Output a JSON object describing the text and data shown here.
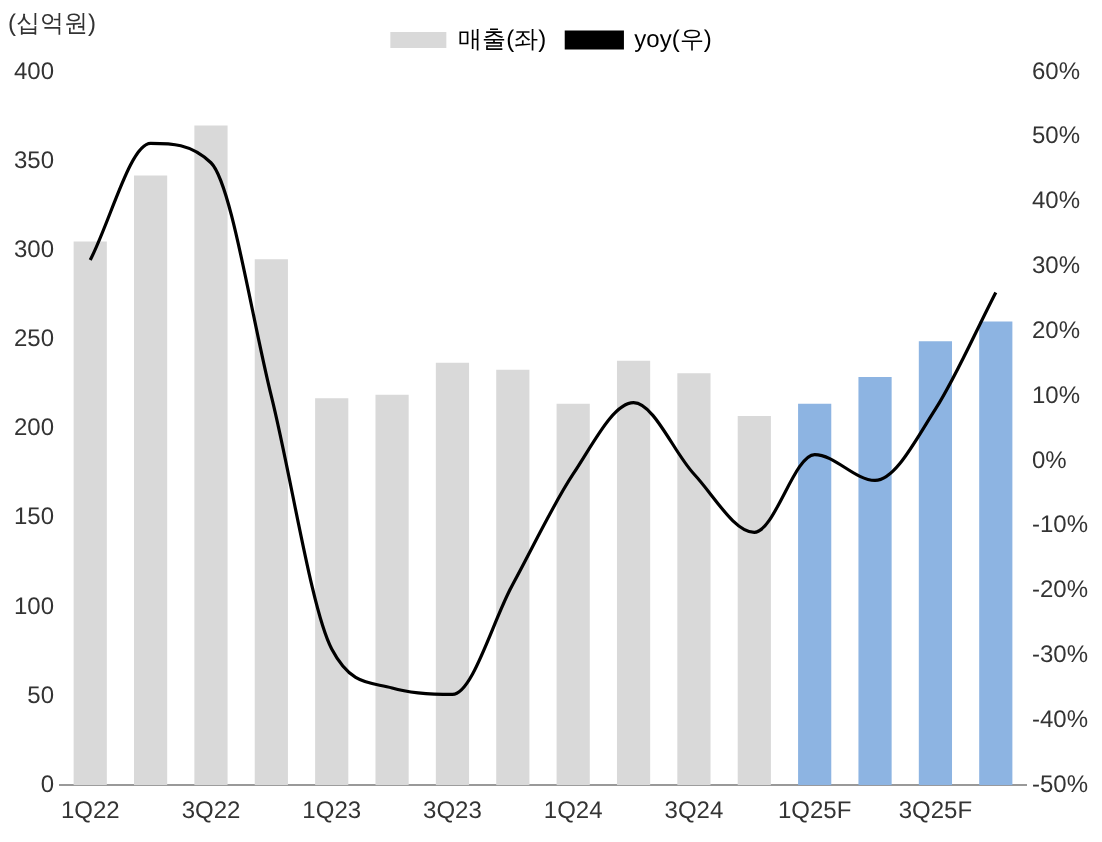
{
  "chart_data": {
    "type": "bar",
    "ylabel": "(십억원)",
    "categories": [
      "1Q22",
      null,
      "3Q22",
      null,
      "1Q23",
      null,
      "3Q23",
      null,
      "1Q24",
      null,
      "3Q24",
      null,
      "1Q25F",
      null,
      "3Q25F",
      null
    ],
    "series": [
      {
        "name": "매출(좌)",
        "color": "#d9d9d9",
        "colors": [
          "#d9d9d9",
          "#d9d9d9",
          "#d9d9d9",
          "#d9d9d9",
          "#d9d9d9",
          "#d9d9d9",
          "#d9d9d9",
          "#d9d9d9",
          "#d9d9d9",
          "#d9d9d9",
          "#d9d9d9",
          "#d9d9d9",
          "#8db4e2",
          "#8db4e2",
          "#8db4e2",
          "#8db4e2"
        ],
        "values": [
          305,
          342,
          370,
          295,
          217,
          219,
          237,
          233,
          214,
          238,
          231,
          207,
          214,
          229,
          249,
          260
        ]
      },
      {
        "name": "yoy(우)",
        "type": "line",
        "axis": "y2",
        "color": "#000000",
        "values": [
          31,
          49,
          46,
          10,
          -29,
          -35,
          -36,
          -19,
          -2,
          9,
          -2,
          -11,
          1,
          -3,
          8,
          26
        ]
      }
    ],
    "ylim": [
      0,
      400
    ],
    "yticks": [
      0,
      50,
      100,
      150,
      200,
      250,
      300,
      350,
      400
    ],
    "y2lim": [
      -50,
      60
    ],
    "y2ticks": [
      {
        "value": -50,
        "label": "-50%"
      },
      {
        "value": -40,
        "label": "-40%"
      },
      {
        "value": -30,
        "label": "-30%"
      },
      {
        "value": -20,
        "label": "-20%"
      },
      {
        "value": -10,
        "label": "-10%"
      },
      {
        "value": 0,
        "label": "0%"
      },
      {
        "value": 10,
        "label": "10%"
      },
      {
        "value": 20,
        "label": "20%"
      },
      {
        "value": 30,
        "label": "30%"
      },
      {
        "value": 40,
        "label": "40%"
      },
      {
        "value": 50,
        "label": "50%"
      },
      {
        "value": 60,
        "label": "60%"
      }
    ],
    "grid": false,
    "legend": "top",
    "marker": "none",
    "line_style": "solid"
  }
}
